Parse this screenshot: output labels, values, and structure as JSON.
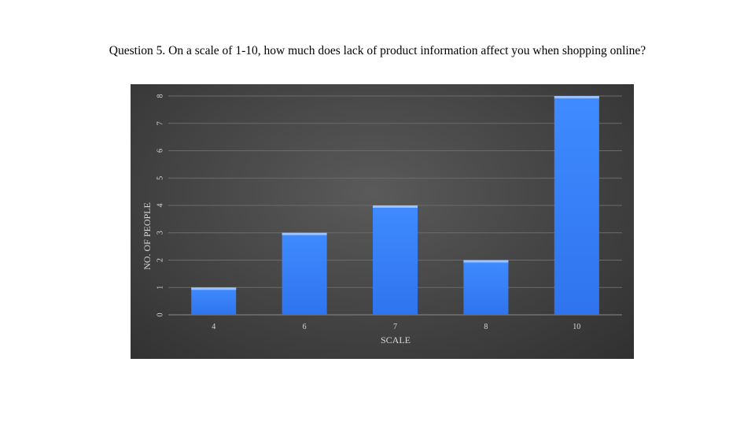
{
  "title": "Question 5. On a scale of 1-10, how much does lack of product information affect you when shopping online?",
  "colors": {
    "background": "#ffffff",
    "plot_background": "#474747",
    "bar_fill": "#3b82f6",
    "bar_highlight": "#9cc2ff",
    "gridline": "#6b6b6b",
    "axis_text": "#d9d9d9"
  },
  "chart_data": {
    "type": "bar",
    "categories": [
      "4",
      "6",
      "7",
      "8",
      "10"
    ],
    "values": [
      1,
      3,
      4,
      2,
      8
    ],
    "title": "",
    "xlabel": "SCALE",
    "ylabel": "NO. OF PEOPLE",
    "ylim": [
      0,
      8
    ],
    "yticks": [
      "0",
      "1",
      "2",
      "3",
      "4",
      "5",
      "6",
      "7",
      "8"
    ],
    "grid": true,
    "legend": "none"
  }
}
